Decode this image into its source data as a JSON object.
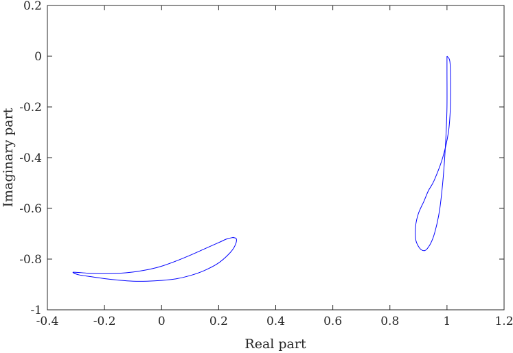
{
  "chart_data": {
    "type": "line",
    "title": "",
    "xlabel": "Real part",
    "ylabel": "Imaginary part",
    "xlim": [
      -0.4,
      1.2
    ],
    "ylim": [
      -1,
      0.2
    ],
    "xticks": [
      -0.4,
      -0.2,
      0,
      0.2,
      0.4,
      0.6,
      0.8,
      1,
      1.2
    ],
    "yticks": [
      -1,
      -0.8,
      -0.6,
      -0.4,
      -0.2,
      0,
      0.2
    ],
    "xtick_labels": [
      "-0.4",
      "-0.2",
      "0",
      "0.2",
      "0.4",
      "0.6",
      "0.8",
      "1",
      "1.2"
    ],
    "ytick_labels": [
      "-1",
      "-0.8",
      "-0.6",
      "-0.4",
      "-0.2",
      "0",
      "0.2"
    ],
    "grid": false,
    "box": true,
    "series": [
      {
        "color": "#0000ff",
        "closed": true,
        "x": [
          1.0,
          1.01,
          1.013,
          1.012,
          1.005,
          0.985,
          0.955,
          0.935,
          0.92,
          0.9,
          0.89,
          0.89,
          0.9,
          0.915,
          0.93,
          0.95,
          0.965,
          0.975,
          0.985,
          0.992,
          0.997,
          1.0,
          1.0
        ],
        "y": [
          0.0,
          -0.02,
          -0.1,
          -0.2,
          -0.3,
          -0.4,
          -0.49,
          -0.53,
          -0.57,
          -0.62,
          -0.67,
          -0.72,
          -0.75,
          -0.766,
          -0.76,
          -0.72,
          -0.66,
          -0.6,
          -0.5,
          -0.4,
          -0.3,
          -0.2,
          -0.06
        ]
      },
      {
        "color": "#0000ff",
        "closed": true,
        "x": [
          0.25,
          0.262,
          0.258,
          0.24,
          0.2,
          0.15,
          0.1,
          0.05,
          0.0,
          -0.05,
          -0.1,
          -0.15,
          -0.2,
          -0.25,
          -0.29,
          -0.31,
          -0.3,
          -0.25,
          -0.2,
          -0.15,
          -0.1,
          -0.05,
          0.0,
          0.05,
          0.1,
          0.15,
          0.2,
          0.23,
          0.25
        ],
        "y": [
          -0.715,
          -0.72,
          -0.745,
          -0.775,
          -0.815,
          -0.845,
          -0.865,
          -0.878,
          -0.884,
          -0.887,
          -0.887,
          -0.883,
          -0.877,
          -0.869,
          -0.862,
          -0.853,
          -0.852,
          -0.856,
          -0.857,
          -0.856,
          -0.851,
          -0.842,
          -0.828,
          -0.808,
          -0.785,
          -0.76,
          -0.735,
          -0.72,
          -0.715
        ]
      }
    ]
  }
}
